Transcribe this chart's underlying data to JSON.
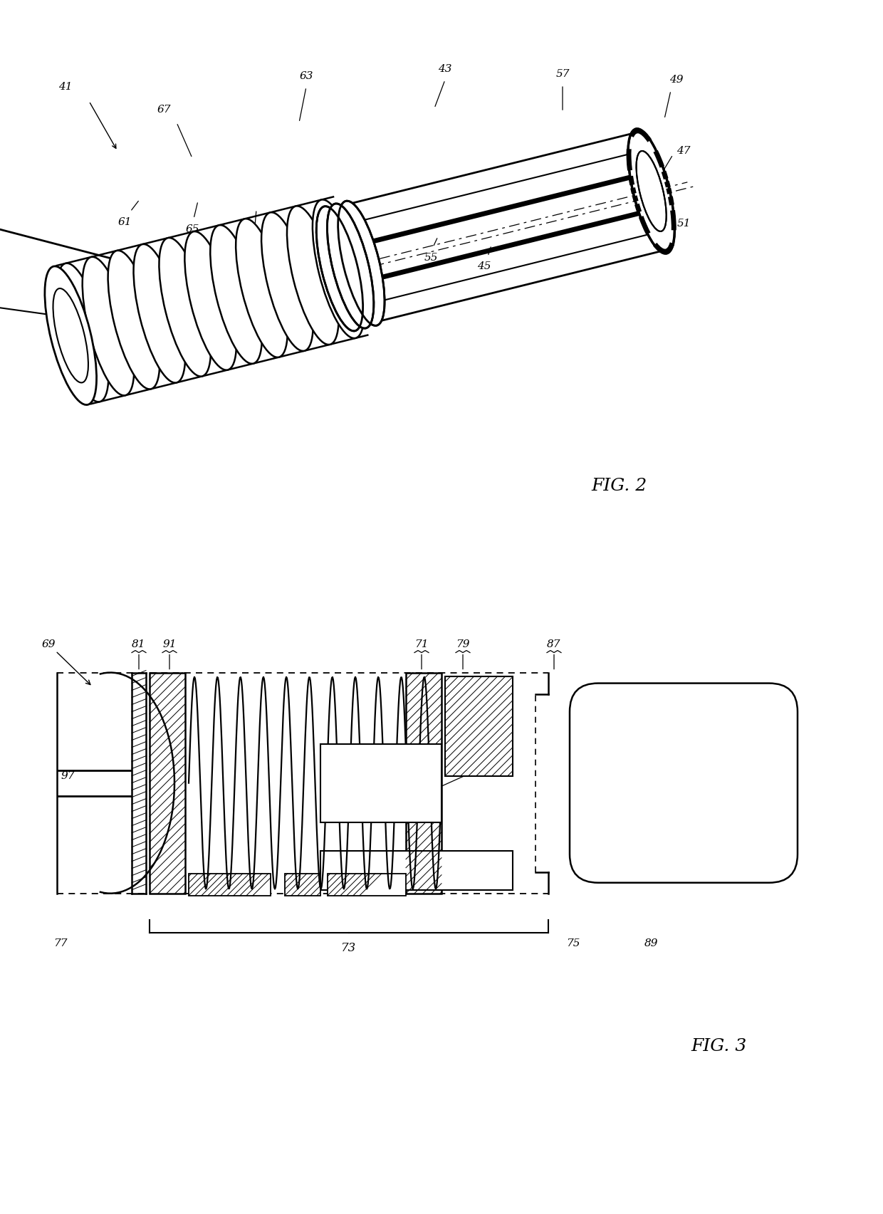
{
  "fig_width": 12.4,
  "fig_height": 17.05,
  "bg_color": "#ffffff"
}
